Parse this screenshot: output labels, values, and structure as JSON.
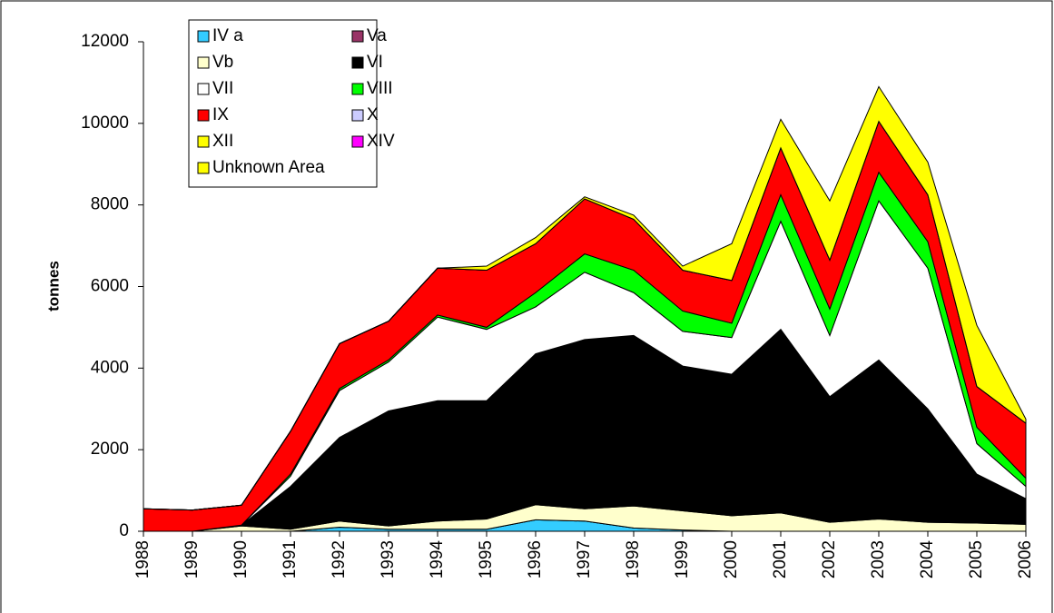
{
  "chart_data": {
    "type": "stacked_area",
    "y_label": "tonnes",
    "categories": [
      "1988",
      "1989",
      "1990",
      "1991",
      "1992",
      "1993",
      "1994",
      "1995",
      "1996",
      "1997",
      "1998",
      "1999",
      "2000",
      "2001",
      "2002",
      "2003",
      "2004",
      "2005",
      "2006"
    ],
    "ylim": [
      0,
      12000
    ],
    "yticks": [
      0,
      2000,
      4000,
      6000,
      8000,
      10000,
      12000
    ],
    "series": [
      {
        "name": "IV a",
        "color": "#33ccff",
        "values": [
          0,
          0,
          0,
          0,
          100,
          50,
          50,
          50,
          280,
          250,
          80,
          30,
          0,
          0,
          0,
          0,
          0,
          0,
          0
        ]
      },
      {
        "name": "Va",
        "color": "#993366",
        "values": [
          0,
          0,
          0,
          0,
          0,
          0,
          0,
          0,
          0,
          0,
          0,
          0,
          0,
          0,
          0,
          0,
          0,
          0,
          0
        ]
      },
      {
        "name": "Vb",
        "color": "#ffffcc",
        "values": [
          0,
          0,
          130,
          50,
          150,
          80,
          200,
          250,
          370,
          300,
          540,
          470,
          380,
          450,
          220,
          300,
          220,
          200,
          170
        ]
      },
      {
        "name": "VI",
        "color": "#000000",
        "values": [
          0,
          0,
          20,
          1050,
          2050,
          2820,
          2950,
          2900,
          3700,
          4150,
          4180,
          3550,
          3470,
          4500,
          3080,
          3900,
          2780,
          1200,
          630
        ]
      },
      {
        "name": "VII",
        "color": "#ffffff",
        "values": [
          0,
          0,
          0,
          250,
          1150,
          1200,
          2050,
          1750,
          1150,
          1650,
          1050,
          850,
          900,
          2650,
          1500,
          3900,
          3450,
          750,
          300
        ]
      },
      {
        "name": "VIII",
        "color": "#00ff00",
        "values": [
          0,
          0,
          0,
          50,
          50,
          50,
          50,
          50,
          350,
          450,
          550,
          500,
          350,
          650,
          650,
          700,
          650,
          400,
          200
        ]
      },
      {
        "name": "IX",
        "color": "#ff0000",
        "values": [
          550,
          520,
          490,
          1050,
          1100,
          950,
          1150,
          1400,
          1200,
          1350,
          1250,
          1000,
          1050,
          1150,
          1200,
          1250,
          1150,
          1000,
          1350
        ]
      },
      {
        "name": "X",
        "color": "#ccccff",
        "values": [
          0,
          0,
          0,
          0,
          0,
          0,
          0,
          0,
          0,
          0,
          0,
          0,
          0,
          0,
          0,
          0,
          0,
          0,
          0
        ]
      },
      {
        "name": "XII",
        "color": "#ffff00",
        "values": [
          0,
          0,
          0,
          0,
          0,
          0,
          0,
          0,
          0,
          0,
          0,
          0,
          0,
          0,
          0,
          0,
          0,
          0,
          0
        ]
      },
      {
        "name": "XIV",
        "color": "#ff00ff",
        "values": [
          0,
          0,
          0,
          0,
          0,
          0,
          0,
          0,
          0,
          0,
          0,
          0,
          0,
          0,
          0,
          0,
          0,
          0,
          0
        ]
      },
      {
        "name": "Unknown Area",
        "color": "#ffff00",
        "values": [
          0,
          0,
          0,
          0,
          0,
          0,
          0,
          100,
          150,
          50,
          100,
          100,
          900,
          700,
          1450,
          850,
          800,
          1500,
          100
        ]
      }
    ]
  }
}
